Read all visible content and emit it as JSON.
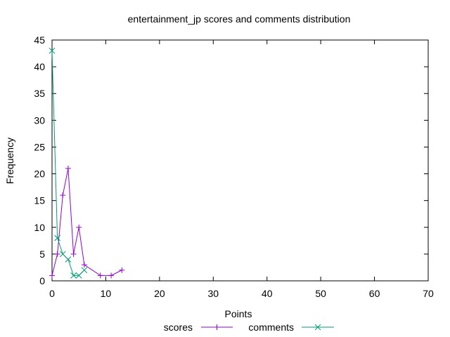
{
  "chart_data": {
    "type": "line",
    "title": "entertainment_jp scores and comments distribution",
    "xlabel": "Points",
    "ylabel": "Frequency",
    "xlim": [
      0,
      70
    ],
    "ylim": [
      0,
      45
    ],
    "x_ticks": [
      0,
      10,
      20,
      30,
      40,
      50,
      60,
      70
    ],
    "y_ticks": [
      0,
      5,
      10,
      15,
      20,
      25,
      30,
      35,
      40,
      45
    ],
    "grid": false,
    "legend_position": "bottom",
    "series": [
      {
        "name": "scores",
        "color": "#9400d3",
        "marker": "plus",
        "x": [
          0,
          1,
          2,
          3,
          4,
          5,
          6,
          9,
          11,
          13
        ],
        "y": [
          1,
          5,
          16,
          21,
          5,
          10,
          3,
          1,
          1,
          2
        ]
      },
      {
        "name": "comments",
        "color": "#009e73",
        "marker": "cross",
        "x": [
          0,
          1,
          2,
          3,
          4,
          5,
          6
        ],
        "y": [
          43,
          8,
          5,
          4,
          1,
          1,
          2
        ]
      }
    ]
  }
}
